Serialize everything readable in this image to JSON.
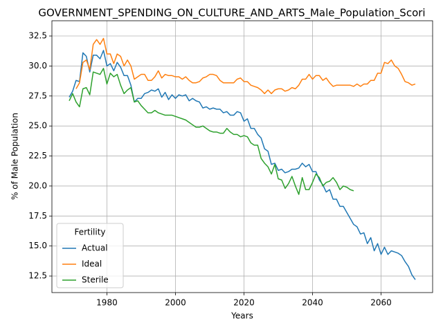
{
  "chart_data": {
    "type": "line",
    "title": "GOVERNMENT_SPENDING_ON_CULTURE_AND_ARTS_Male_Population_Scori",
    "xlabel": "Years",
    "ylabel": "% of Male Population",
    "legend_title": "Fertility",
    "legend": "lower left",
    "grid": true,
    "xlim": [
      1963.95,
      2075.05
    ],
    "xticks": [
      1980,
      2000,
      2020,
      2040,
      2060
    ],
    "ylim": [
      11.12,
      33.77
    ],
    "yticks": [
      12.5,
      {
        "value": 15,
        "label": "15.0"
      },
      17.5,
      {
        "value": 20,
        "label": "20.0"
      },
      22.5,
      {
        "value": 25,
        "label": "25.0"
      },
      27.5,
      {
        "value": 30,
        "label": "30.0"
      },
      32.5
    ],
    "series": [
      {
        "name": "Actual",
        "color": "#1f77b4",
        "x": [
          1969,
          1970,
          1971,
          1972,
          1973,
          1974,
          1975,
          1976,
          1977,
          1978,
          1979,
          1980,
          1981,
          1982,
          1983,
          1984,
          1985,
          1986,
          1987,
          1988,
          1989,
          1990,
          1991,
          1992,
          1993,
          1994,
          1995,
          1996,
          1997,
          1998,
          1999,
          2000,
          2001,
          2002,
          2003,
          2004,
          2005,
          2006,
          2007,
          2008,
          2009,
          2010,
          2011,
          2012,
          2013,
          2014,
          2015,
          2016,
          2017,
          2018,
          2019,
          2020,
          2021,
          2022,
          2023,
          2024,
          2025,
          2026,
          2027,
          2028,
          2029,
          2030,
          2031,
          2032,
          2033,
          2034,
          2035,
          2036,
          2037,
          2038,
          2039,
          2040,
          2041,
          2042,
          2043,
          2044,
          2045,
          2046,
          2047,
          2048,
          2049,
          2050,
          2051,
          2052,
          2053,
          2054,
          2055,
          2056,
          2057,
          2058,
          2059,
          2060,
          2061,
          2062,
          2063,
          2064,
          2065,
          2066,
          2067,
          2068,
          2069,
          2070
        ],
        "values": [
          27.4,
          27.9,
          28.8,
          28.7,
          31.1,
          30.8,
          29.5,
          30.9,
          30.9,
          30.6,
          31.3,
          30.0,
          30.2,
          29.6,
          30.3,
          29.9,
          29.2,
          29.2,
          28.4,
          27.0,
          27.3,
          27.3,
          27.7,
          27.8,
          28.0,
          27.9,
          28.1,
          27.4,
          27.8,
          27.2,
          27.6,
          27.3,
          27.6,
          27.5,
          27.6,
          27.1,
          27.3,
          27.1,
          27.0,
          26.5,
          26.6,
          26.4,
          26.5,
          26.4,
          26.4,
          26.1,
          26.2,
          25.9,
          25.9,
          26.2,
          26.1,
          25.4,
          25.6,
          24.8,
          24.8,
          24.3,
          24.0,
          23.1,
          22.9,
          21.8,
          21.9,
          21.3,
          21.4,
          21.1,
          21.2,
          21.4,
          21.4,
          21.5,
          21.9,
          21.6,
          21.8,
          21.2,
          21.2,
          20.5,
          20.1,
          19.5,
          19.7,
          18.9,
          18.9,
          18.3,
          18.3,
          17.8,
          17.3,
          16.8,
          16.6,
          16.0,
          16.1,
          15.2,
          15.7,
          14.6,
          15.2,
          14.3,
          14.9,
          14.3,
          14.6,
          14.5,
          14.4,
          14.2,
          13.7,
          13.3,
          12.6,
          12.2
        ]
      },
      {
        "name": "Ideal",
        "color": "#ff7f0e",
        "x": [
          1971,
          1972,
          1973,
          1974,
          1975,
          1976,
          1977,
          1978,
          1979,
          1980,
          1981,
          1982,
          1983,
          1984,
          1985,
          1986,
          1987,
          1988,
          1989,
          1990,
          1991,
          1992,
          1993,
          1994,
          1995,
          1996,
          1997,
          1998,
          1999,
          2000,
          2001,
          2002,
          2003,
          2004,
          2005,
          2006,
          2007,
          2008,
          2009,
          2010,
          2011,
          2012,
          2013,
          2014,
          2015,
          2016,
          2017,
          2018,
          2019,
          2020,
          2021,
          2022,
          2023,
          2024,
          2025,
          2026,
          2027,
          2028,
          2029,
          2030,
          2031,
          2032,
          2033,
          2034,
          2035,
          2036,
          2037,
          2038,
          2039,
          2040,
          2041,
          2042,
          2043,
          2044,
          2045,
          2046,
          2047,
          2048,
          2049,
          2050,
          2051,
          2052,
          2053,
          2054,
          2055,
          2056,
          2057,
          2058,
          2059,
          2060,
          2061,
          2062,
          2063,
          2064,
          2065,
          2066,
          2067,
          2068,
          2069,
          2070
        ],
        "values": [
          28.1,
          28.6,
          30.3,
          30.5,
          29.7,
          31.8,
          32.2,
          31.8,
          32.3,
          31.0,
          31.0,
          30.2,
          31.0,
          30.8,
          30.0,
          30.5,
          30.0,
          28.9,
          29.1,
          29.3,
          29.3,
          28.8,
          28.8,
          29.1,
          29.6,
          29.0,
          29.3,
          29.2,
          29.2,
          29.1,
          29.1,
          28.9,
          29.1,
          28.8,
          28.6,
          28.6,
          28.7,
          29.0,
          29.1,
          29.3,
          29.3,
          29.2,
          28.8,
          28.6,
          28.6,
          28.6,
          28.6,
          28.9,
          29.0,
          28.7,
          28.7,
          28.4,
          28.3,
          28.2,
          28.0,
          27.7,
          28.0,
          27.7,
          28.0,
          28.1,
          28.1,
          27.9,
          28.0,
          28.2,
          28.1,
          28.4,
          28.9,
          28.9,
          29.3,
          28.9,
          29.2,
          29.2,
          28.8,
          29.0,
          28.6,
          28.3,
          28.4,
          28.4,
          28.4,
          28.4,
          28.4,
          28.3,
          28.5,
          28.3,
          28.5,
          28.5,
          28.8,
          28.8,
          29.4,
          29.4,
          30.3,
          30.2,
          30.5,
          30.0,
          29.8,
          29.3,
          28.7,
          28.6,
          28.4,
          28.5
        ]
      },
      {
        "name": "Sterile",
        "color": "#2ca02c",
        "x": [
          1969,
          1970,
          1971,
          1972,
          1973,
          1974,
          1975,
          1976,
          1977,
          1978,
          1979,
          1980,
          1981,
          1982,
          1983,
          1984,
          1985,
          1986,
          1987,
          1988,
          1989,
          1990,
          1991,
          1992,
          1993,
          1994,
          1995,
          1996,
          1997,
          1998,
          1999,
          2000,
          2001,
          2002,
          2003,
          2004,
          2005,
          2006,
          2007,
          2008,
          2009,
          2010,
          2011,
          2012,
          2013,
          2014,
          2015,
          2016,
          2017,
          2018,
          2019,
          2020,
          2021,
          2022,
          2023,
          2024,
          2025,
          2026,
          2027,
          2028,
          2029,
          2030,
          2031,
          2032,
          2033,
          2034,
          2035,
          2036,
          2037,
          2038,
          2039,
          2040,
          2041,
          2042,
          2043,
          2044,
          2045,
          2046,
          2047,
          2048,
          2049,
          2050,
          2051,
          2052
        ],
        "values": [
          27.1,
          27.7,
          27.0,
          26.6,
          28.1,
          28.2,
          27.6,
          29.5,
          29.4,
          29.3,
          29.8,
          28.5,
          29.4,
          29.1,
          29.3,
          28.4,
          27.7,
          28.0,
          28.2,
          27.0,
          27.1,
          26.7,
          26.4,
          26.1,
          26.1,
          26.3,
          26.1,
          26.0,
          25.9,
          25.9,
          25.9,
          25.8,
          25.7,
          25.6,
          25.5,
          25.3,
          25.1,
          24.9,
          24.9,
          25.0,
          24.8,
          24.6,
          24.5,
          24.5,
          24.4,
          24.4,
          24.8,
          24.5,
          24.3,
          24.3,
          24.1,
          24.2,
          24.1,
          23.6,
          23.4,
          23.4,
          22.3,
          21.9,
          21.6,
          21.0,
          21.8,
          20.6,
          20.5,
          19.8,
          20.2,
          20.8,
          20.0,
          19.3,
          20.7,
          19.7,
          19.7,
          20.3,
          21.0,
          20.7,
          20.0,
          20.3,
          20.4,
          20.7,
          20.3,
          19.7,
          20.0,
          19.9,
          19.7,
          19.6
        ]
      }
    ]
  }
}
